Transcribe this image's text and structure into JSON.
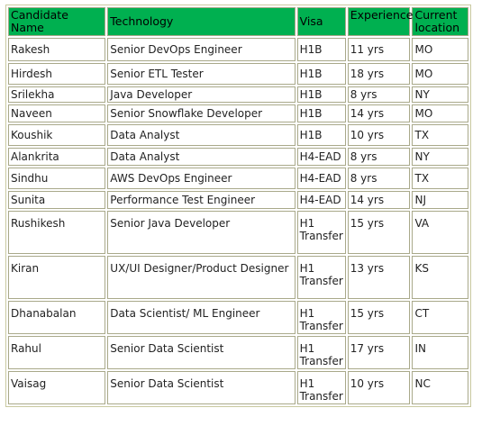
{
  "table": {
    "headers": [
      "Candidate Name",
      "Technology",
      "Visa",
      "Experience",
      "Current location"
    ],
    "rows": [
      {
        "name": "Rakesh",
        "tech": "Senior DevOps Engineer",
        "visa": "H1B",
        "exp": "11 yrs",
        "loc": "MO"
      },
      {
        "name": "Hirdesh",
        "tech": "Senior ETL Tester",
        "visa": "H1B",
        "exp": "18 yrs",
        "loc": "MO"
      },
      {
        "name": "Srilekha",
        "tech": "Java Developer",
        "visa": "H1B",
        "exp": "8 yrs",
        "loc": "NY"
      },
      {
        "name": "Naveen",
        "tech": "Senior Snowflake Developer",
        "visa": "H1B",
        "exp": "14 yrs",
        "loc": "MO"
      },
      {
        "name": "Koushik",
        "tech": "Data Analyst",
        "visa": "H1B",
        "exp": "10 yrs",
        "loc": "TX"
      },
      {
        "name": "Alankrita",
        "tech": "Data Analyst",
        "visa": "H4-EAD",
        "exp": "8 yrs",
        "loc": "NY"
      },
      {
        "name": "Sindhu",
        "tech": "AWS DevOps Engineer",
        "visa": "H4-EAD",
        "exp": "8 yrs",
        "loc": "TX"
      },
      {
        "name": "Sunita",
        "tech": "Performance Test Engineer",
        "visa": "H4-EAD",
        "exp": "14 yrs",
        "loc": "NJ"
      },
      {
        "name": "Rushikesh",
        "tech": "Senior Java Developer",
        "visa": "H1 Transfer",
        "exp": "15 yrs",
        "loc": "VA"
      },
      {
        "name": "Kiran",
        "tech": "UX/UI Designer/Product Designer",
        "visa": "H1 Transfer",
        "exp": "13 yrs",
        "loc": "KS"
      },
      {
        "name": "Dhanabalan",
        "tech": "Data Scientist/ ML Engineer",
        "visa": "H1 Transfer",
        "exp": "15 yrs",
        "loc": "CT"
      },
      {
        "name": "Rahul",
        "tech": "Senior Data Scientist",
        "visa": "H1 Transfer",
        "exp": "17 yrs",
        "loc": "IN"
      },
      {
        "name": "Vaisag",
        "tech": "Senior Data Scientist",
        "visa": "H1 Transfer",
        "exp": "10 yrs",
        "loc": "NC"
      }
    ]
  },
  "colors": {
    "header_bg": "#00b050",
    "border": "#a9a98a"
  }
}
